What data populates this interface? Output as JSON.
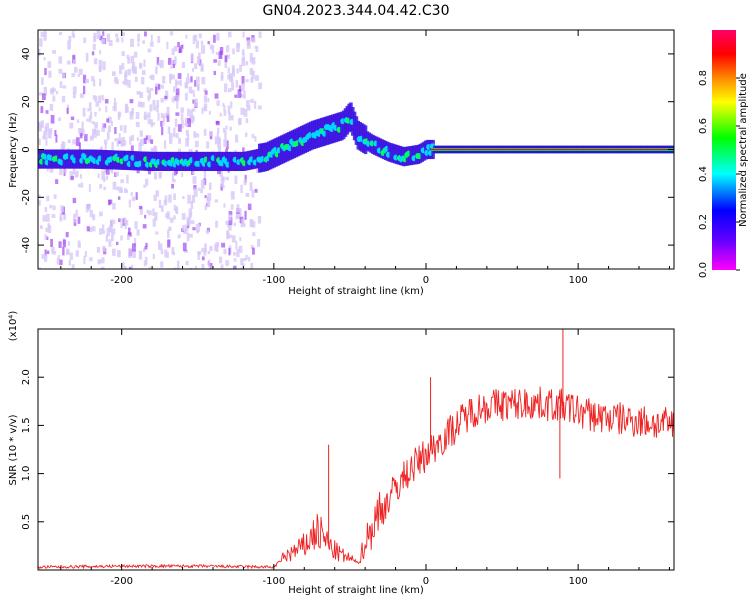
{
  "figure": {
    "title": "GN04.2023.344.04.42.C30"
  },
  "colorbar": {
    "label": "Normalized spectral amplitude",
    "ticks": [
      "0.0",
      "0.2",
      "0.4",
      "0.6",
      "0.8"
    ]
  },
  "colors": {
    "snr_line": "#ee2222",
    "ridge_line": "#d0104a",
    "colormap": [
      "#ff00ff",
      "#6600ff",
      "#0000ff",
      "#00ffff",
      "#00ff00",
      "#ffff00",
      "#ff8800",
      "#ff0000",
      "#ff0066"
    ]
  },
  "chart_data": [
    {
      "type": "heatmap",
      "xlabel": "Height of straight line (km)",
      "ylabel": "Frequency (Hz)",
      "xlim": [
        -255,
        163
      ],
      "ylim": [
        -50,
        50
      ],
      "x_ticks": [
        -200,
        -100,
        0,
        100
      ],
      "y_ticks": [
        -40,
        -20,
        0,
        20,
        40
      ],
      "colorbar_range": [
        0,
        1
      ],
      "ridge": {
        "x": [
          -255,
          -220,
          -180,
          -150,
          -120,
          -105,
          -95,
          -85,
          -75,
          -65,
          -55,
          -50,
          -45,
          -35,
          -25,
          -15,
          -5,
          0,
          10,
          50,
          100,
          163
        ],
        "y": [
          -4,
          -4,
          -5,
          -5,
          -5,
          -3,
          0,
          3,
          6,
          8,
          10,
          14,
          6,
          2,
          -1,
          -3,
          -2,
          0,
          0,
          0,
          0,
          0
        ]
      },
      "grid": false
    },
    {
      "type": "line",
      "xlabel": "Height of straight line (km)",
      "ylabel": "SNR (10 * v/v)",
      "y_multiplier": "(x10⁴)",
      "xlim": [
        -255,
        163
      ],
      "ylim": [
        0,
        2.5
      ],
      "x_ticks": [
        -200,
        -100,
        0,
        100
      ],
      "y_ticks": [
        0.5,
        1.0,
        1.5,
        2.0
      ],
      "series": [
        {
          "x": [
            -255,
            -200,
            -150,
            -100,
            -92,
            -85,
            -80,
            -72,
            -68,
            -62,
            -55,
            -48,
            -44,
            -40,
            -30,
            -20,
            -10,
            0,
            10,
            20,
            30,
            40,
            50,
            60,
            70,
            80,
            90,
            100,
            110,
            120,
            130,
            140,
            150,
            163
          ],
          "values": [
            0.03,
            0.04,
            0.04,
            0.03,
            0.15,
            0.2,
            0.25,
            0.4,
            0.35,
            0.22,
            0.15,
            0.1,
            0.08,
            0.3,
            0.6,
            0.85,
            1.05,
            1.2,
            1.35,
            1.5,
            1.65,
            1.7,
            1.72,
            1.72,
            1.73,
            1.72,
            1.7,
            1.65,
            1.6,
            1.58,
            1.56,
            1.55,
            1.52,
            1.5
          ]
        }
      ],
      "spikes": [
        {
          "x": -64,
          "y": 1.3
        },
        {
          "x": 3,
          "y": 2.0
        },
        {
          "x": 90,
          "y": 2.5
        },
        {
          "x": 88,
          "y": 0.95
        }
      ],
      "grid": false
    }
  ]
}
